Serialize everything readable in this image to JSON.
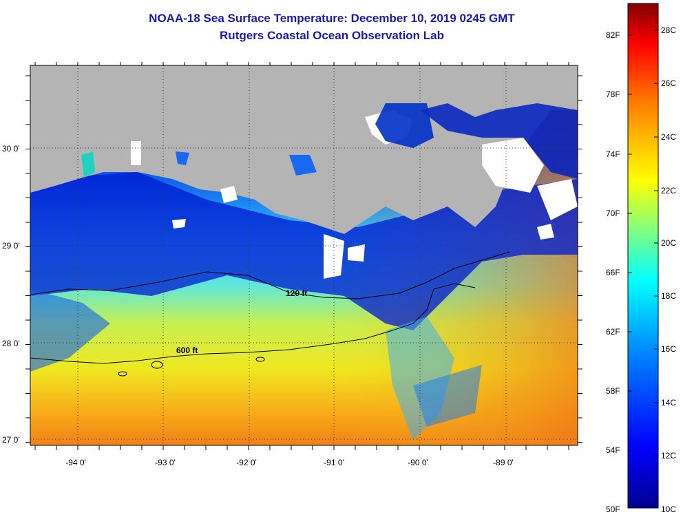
{
  "title": {
    "line1": "NOAA-18 Sea Surface Temperature:  December 10, 2019 0245 GMT",
    "line2": "Rutgers Coastal Ocean Observation Lab"
  },
  "map": {
    "lon_labels": [
      "-94 0'",
      "-93 0'",
      "-92 0'",
      "-91 0'",
      "-90 0'",
      "-89 0'"
    ],
    "lat_labels": [
      "30 0'",
      "29 0'",
      "28 0'",
      "27 0'"
    ],
    "contours": [
      "120 ft",
      "600 ft"
    ],
    "colors": {
      "land": "#b4b4b4",
      "cloud": "#ffffff"
    }
  },
  "colorbar": {
    "fahrenheit": [
      "82F",
      "78F",
      "74F",
      "70F",
      "66F",
      "62F",
      "58F",
      "54F",
      "50F"
    ],
    "celsius": [
      "28C",
      "26C",
      "24C",
      "22C",
      "20C",
      "18C",
      "16C",
      "14C",
      "12C",
      "10C"
    ],
    "colors": [
      "#00008f",
      "#0000ff",
      "#0080ff",
      "#00ffff",
      "#80ff80",
      "#ffff00",
      "#ff8000",
      "#ff0000",
      "#800000"
    ]
  }
}
